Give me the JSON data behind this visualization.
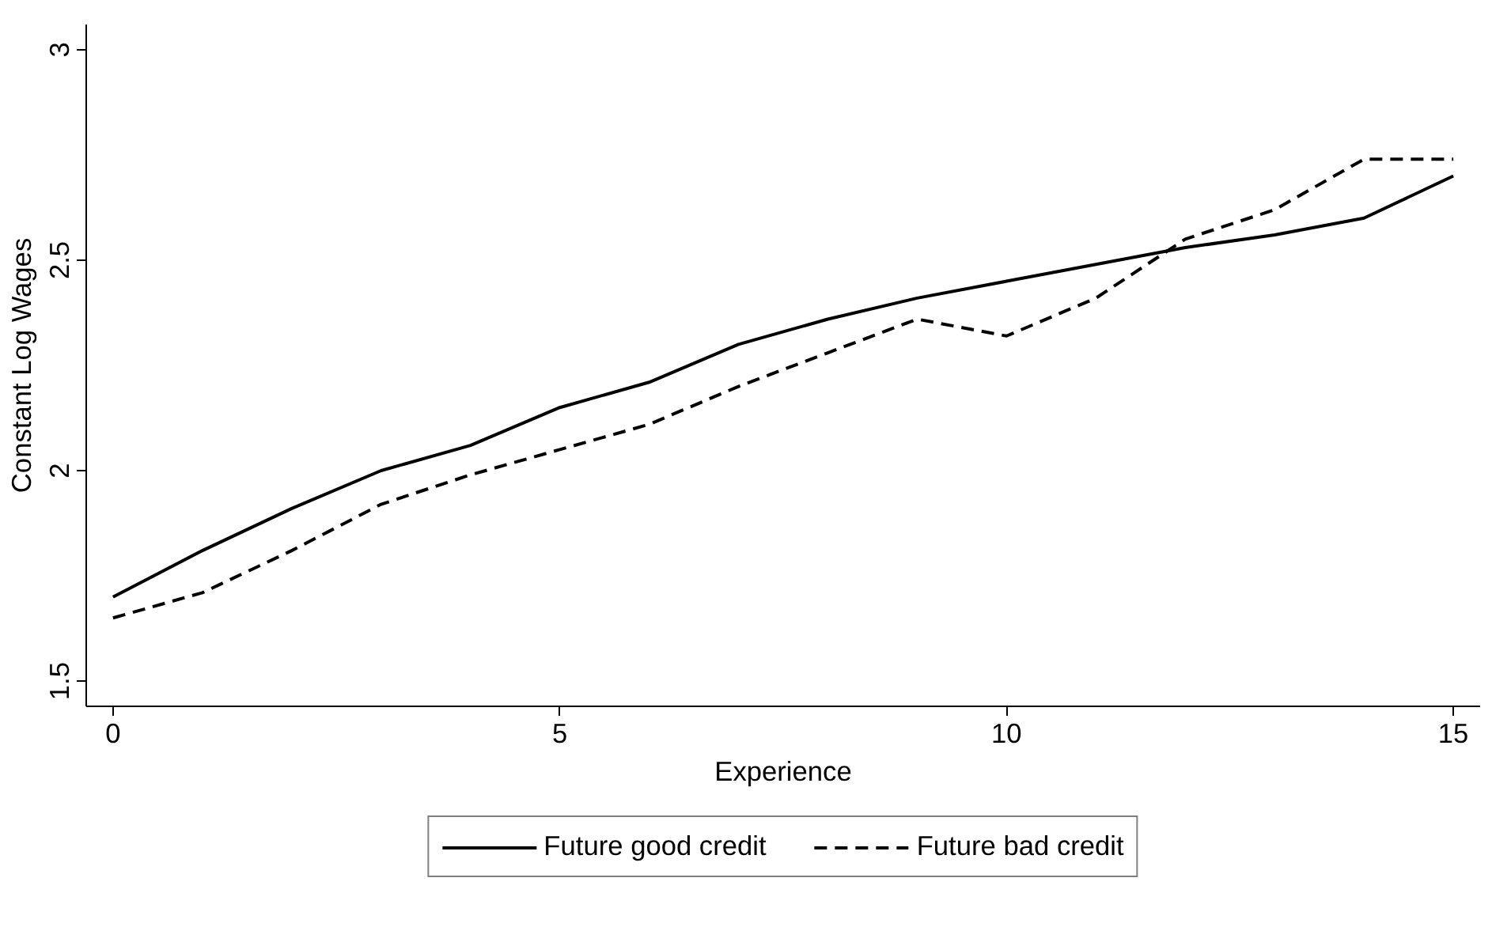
{
  "chart_data": {
    "type": "line",
    "xlabel": "Experience",
    "ylabel": "Constant Log Wages",
    "x": [
      0,
      1,
      2,
      3,
      4,
      5,
      6,
      7,
      8,
      9,
      10,
      11,
      12,
      13,
      14,
      15
    ],
    "xlim": [
      -0.3,
      15.3
    ],
    "ylim": [
      1.44,
      3.06
    ],
    "xticks": [
      0,
      5,
      10,
      15
    ],
    "yticks": [
      1.5,
      2,
      2.5,
      3
    ],
    "grid": false,
    "legend": "bottom",
    "marker": "none",
    "series": [
      {
        "name": "Future good credit",
        "color": "#000000",
        "line_style": "solid",
        "values": [
          1.7,
          1.81,
          1.91,
          2.0,
          2.06,
          2.15,
          2.21,
          2.3,
          2.36,
          2.41,
          2.45,
          2.49,
          2.53,
          2.56,
          2.6,
          2.7
        ]
      },
      {
        "name": "Future bad credit",
        "color": "#000000",
        "line_style": "dashed",
        "values": [
          1.65,
          1.71,
          1.81,
          1.92,
          1.99,
          2.05,
          2.11,
          2.2,
          2.28,
          2.36,
          2.32,
          2.41,
          2.55,
          2.62,
          2.74,
          2.74
        ]
      }
    ]
  }
}
